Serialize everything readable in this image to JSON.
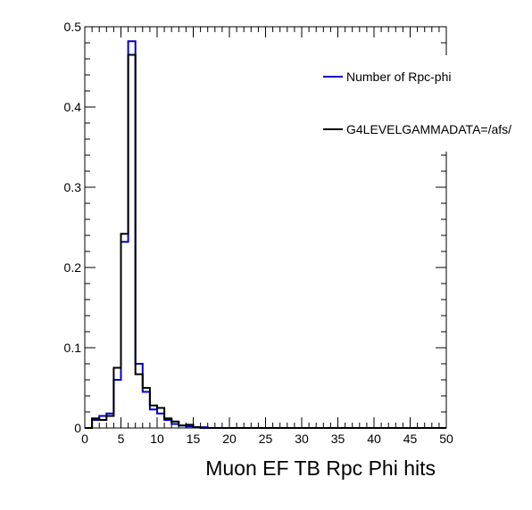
{
  "chart_data": {
    "type": "histogram",
    "xlabel": "Muon EF TB Rpc Phi hits",
    "ylabel": "",
    "xlim": [
      0,
      50
    ],
    "ylim": [
      0,
      0.5
    ],
    "x_ticks": [
      0,
      5,
      10,
      15,
      20,
      25,
      30,
      35,
      40,
      45,
      50
    ],
    "y_ticks": [
      0,
      0.1,
      0.2,
      0.3,
      0.4,
      0.5
    ],
    "bin_width": 1,
    "grid": false,
    "legend_position": "top-right",
    "series": [
      {
        "name": "Number of Rpc-phi",
        "color": "#0000cc",
        "values": [
          0,
          0.01,
          0.015,
          0.018,
          0.06,
          0.232,
          0.482,
          0.08,
          0.045,
          0.023,
          0.018,
          0.01,
          0.005,
          0.003,
          0.002,
          0.001,
          0.001,
          0,
          0,
          0,
          0,
          0,
          0,
          0,
          0,
          0,
          0,
          0,
          0,
          0,
          0,
          0,
          0,
          0,
          0,
          0,
          0,
          0,
          0,
          0,
          0,
          0,
          0,
          0,
          0,
          0,
          0,
          0,
          0,
          0
        ]
      },
      {
        "name": "G4LEVELGAMMADATA=/afs/",
        "color": "#000000",
        "values": [
          0,
          0.012,
          0.01,
          0.015,
          0.075,
          0.242,
          0.465,
          0.067,
          0.05,
          0.028,
          0.025,
          0.012,
          0.008,
          0.003,
          0.004,
          0.001,
          0,
          0,
          0,
          0,
          0,
          0,
          0,
          0,
          0,
          0,
          0,
          0,
          0,
          0,
          0,
          0,
          0,
          0,
          0,
          0,
          0,
          0,
          0,
          0,
          0,
          0,
          0,
          0,
          0,
          0,
          0,
          0,
          0,
          0
        ]
      }
    ]
  }
}
